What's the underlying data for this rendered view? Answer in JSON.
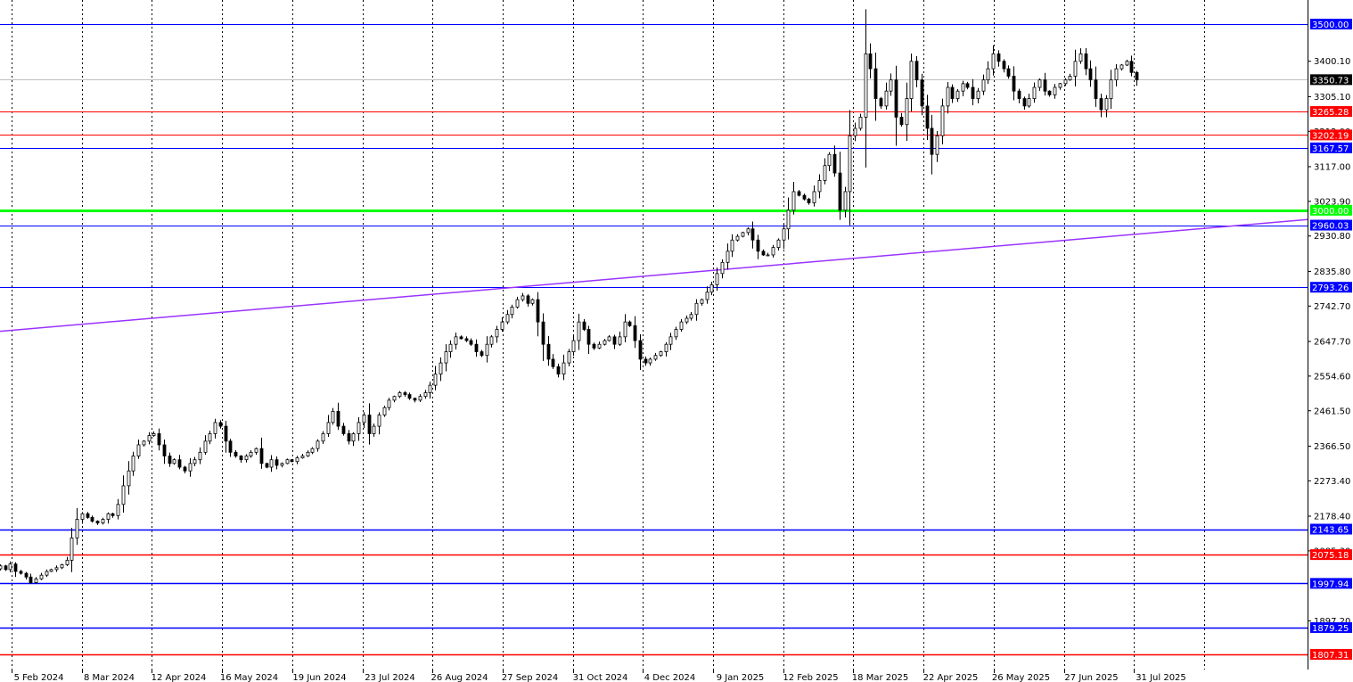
{
  "chart_data": {
    "type": "candlestick",
    "title": "",
    "grid": {
      "vertical": true,
      "horizontal": false
    },
    "y_axis": {
      "position": "right",
      "min": 1770,
      "max": 3560,
      "tick_labels": [
        "3400.10",
        "3305.10",
        "3212.00",
        "3117.00",
        "3023.90",
        "2930.80",
        "2835.80",
        "2742.70",
        "2647.70",
        "2554.60",
        "2461.50",
        "2366.50",
        "2273.40",
        "2178.40",
        "2085.30",
        "1897.20"
      ]
    },
    "x_axis": {
      "tick_labels": [
        "5 Feb 2024",
        "8 Mar 2024",
        "12 Apr 2024",
        "16 May 2024",
        "19 Jun 2024",
        "23 Jul 2024",
        "26 Aug 2024",
        "27 Sep 2024",
        "31 Oct 2024",
        "4 Dec 2024",
        "9 Jan 2025",
        "12 Feb 2025",
        "18 Mar 2025",
        "22 Apr 2025",
        "26 May 2025",
        "27 Jun 2025",
        "31 Jul 2025"
      ]
    },
    "current_price": {
      "value": "3350.73",
      "color": "#000000"
    },
    "levels": [
      {
        "value": "3500.00",
        "color": "#0000ff"
      },
      {
        "value": "3265.28",
        "color": "#ff0000"
      },
      {
        "value": "3202.19",
        "color": "#ff0000"
      },
      {
        "value": "3167.57",
        "color": "#0000ff"
      },
      {
        "value": "3000.00",
        "color": "#00ff00"
      },
      {
        "value": "2960.03",
        "color": "#0000ff"
      },
      {
        "value": "2793.26",
        "color": "#0000ff"
      },
      {
        "value": "2143.65",
        "color": "#0000ff"
      },
      {
        "value": "2075.18",
        "color": "#ff0000"
      },
      {
        "value": "1997.94",
        "color": "#0000ff"
      },
      {
        "value": "1879.25",
        "color": "#0000ff"
      },
      {
        "value": "1807.31",
        "color": "#ff0000"
      }
    ],
    "trendline": {
      "color": "#9933ff",
      "start_value": 2675,
      "end_value": 2975
    },
    "close_path": [
      2045,
      2035,
      2050,
      2030,
      2025,
      2015,
      2000,
      2010,
      2020,
      2030,
      2035,
      2040,
      2048,
      2060,
      2120,
      2170,
      2185,
      2175,
      2165,
      2160,
      2170,
      2185,
      2180,
      2210,
      2260,
      2300,
      2340,
      2370,
      2380,
      2395,
      2400,
      2370,
      2340,
      2320,
      2330,
      2310,
      2300,
      2320,
      2330,
      2350,
      2380,
      2400,
      2430,
      2420,
      2380,
      2350,
      2340,
      2330,
      2340,
      2350,
      2360,
      2320,
      2310,
      2330,
      2315,
      2320,
      2330,
      2325,
      2335,
      2340,
      2350,
      2360,
      2380,
      2400,
      2430,
      2460,
      2420,
      2400,
      2380,
      2400,
      2430,
      2450,
      2400,
      2420,
      2450,
      2470,
      2490,
      2500,
      2510,
      2505,
      2495,
      2490,
      2500,
      2510,
      2530,
      2560,
      2590,
      2620,
      2640,
      2660,
      2655,
      2650,
      2640,
      2620,
      2610,
      2640,
      2660,
      2680,
      2700,
      2720,
      2740,
      2760,
      2770,
      2750,
      2760,
      2700,
      2640,
      2600,
      2580,
      2560,
      2590,
      2620,
      2650,
      2700,
      2680,
      2640,
      2630,
      2640,
      2650,
      2660,
      2640,
      2660,
      2700,
      2690,
      2650,
      2600,
      2590,
      2600,
      2610,
      2620,
      2640,
      2660,
      2680,
      2700,
      2710,
      2720,
      2750,
      2760,
      2780,
      2800,
      2830,
      2860,
      2890,
      2920,
      2930,
      2940,
      2950,
      2920,
      2890,
      2880,
      2880,
      2900,
      2920,
      2950,
      3000,
      3050,
      3040,
      3030,
      3020,
      3050,
      3080,
      3120,
      3150,
      3100,
      3000,
      3050,
      3200,
      3220,
      3250,
      3420,
      3380,
      3300,
      3280,
      3320,
      3350,
      3250,
      3230,
      3300,
      3400,
      3350,
      3280,
      3220,
      3150,
      3200,
      3280,
      3330,
      3300,
      3320,
      3340,
      3330,
      3300,
      3320,
      3350,
      3380,
      3420,
      3400,
      3380,
      3360,
      3320,
      3300,
      3280,
      3300,
      3330,
      3350,
      3320,
      3310,
      3330,
      3340,
      3350,
      3360,
      3400,
      3420,
      3380,
      3350,
      3300,
      3270,
      3300,
      3350,
      3380,
      3390,
      3400,
      3370,
      3350
    ]
  }
}
